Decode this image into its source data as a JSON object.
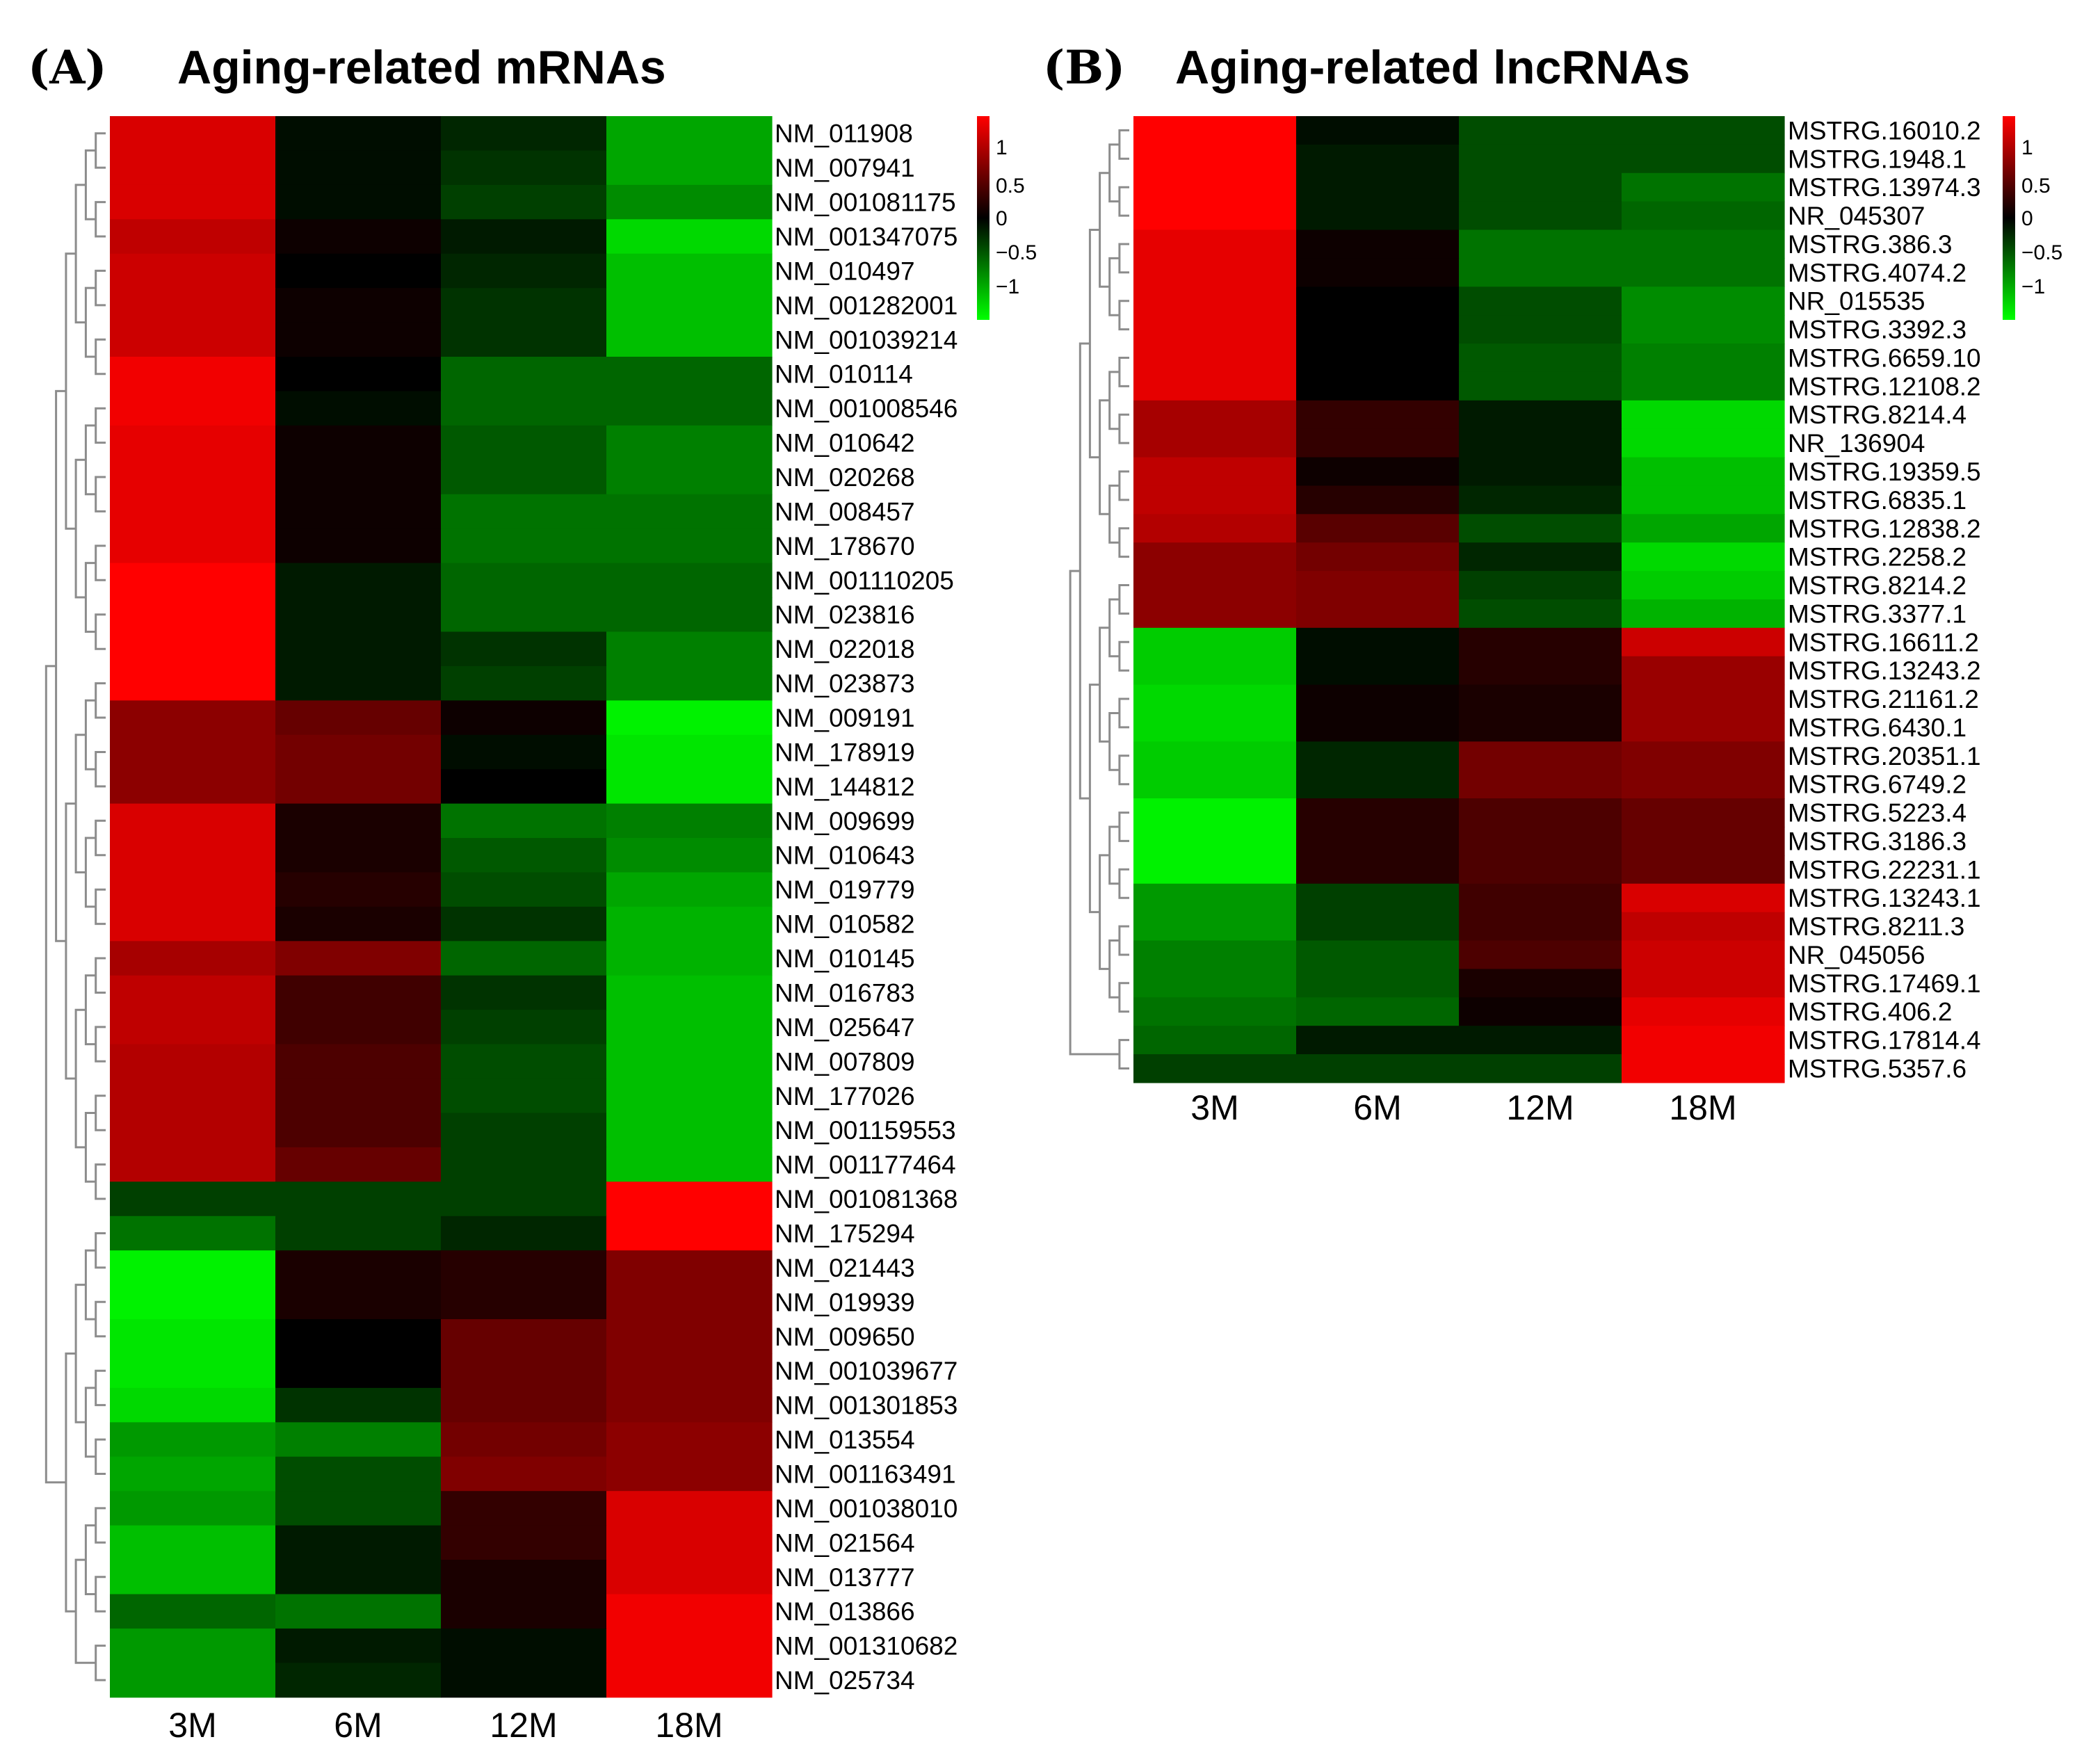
{
  "chart_data": [
    {
      "type": "heatmap",
      "panel": "(A)",
      "title": "Aging-related mRNAs",
      "columns": [
        "3M",
        "6M",
        "12M",
        "18M"
      ],
      "rows": [
        "NM_011908",
        "NM_007941",
        "NM_001081175",
        "NM_001347075",
        "NM_010497",
        "NM_001282001",
        "NM_001039214",
        "NM_010114",
        "NM_001008546",
        "NM_010642",
        "NM_020268",
        "NM_008457",
        "NM_178670",
        "NM_001110205",
        "NM_023816",
        "NM_022018",
        "NM_023873",
        "NM_009191",
        "NM_178919",
        "NM_144812",
        "NM_009699",
        "NM_010643",
        "NM_019779",
        "NM_010582",
        "NM_010145",
        "NM_016783",
        "NM_025647",
        "NM_007809",
        "NM_177026",
        "NM_001159553",
        "NM_001177464",
        "NM_001081368",
        "NM_175294",
        "NM_021443",
        "NM_019939",
        "NM_009650",
        "NM_001039677",
        "NM_001301853",
        "NM_013554",
        "NM_001163491",
        "NM_001038010",
        "NM_021564",
        "NM_013777",
        "NM_013866",
        "NM_001310682",
        "NM_025734"
      ],
      "values": [
        [
          0.85,
          -0.05,
          -0.15,
          -0.65
        ],
        [
          0.85,
          -0.05,
          -0.2,
          -0.65
        ],
        [
          0.85,
          -0.05,
          -0.25,
          -0.55
        ],
        [
          0.75,
          0.05,
          -0.1,
          -0.85
        ],
        [
          0.8,
          0.0,
          -0.15,
          -0.75
        ],
        [
          0.8,
          0.05,
          -0.2,
          -0.75
        ],
        [
          0.8,
          0.05,
          -0.2,
          -0.75
        ],
        [
          0.95,
          0.0,
          -0.4,
          -0.4
        ],
        [
          0.95,
          -0.05,
          -0.4,
          -0.4
        ],
        [
          0.9,
          0.05,
          -0.35,
          -0.5
        ],
        [
          0.9,
          0.05,
          -0.35,
          -0.5
        ],
        [
          0.9,
          0.05,
          -0.45,
          -0.45
        ],
        [
          0.9,
          0.05,
          -0.45,
          -0.45
        ],
        [
          1.0,
          -0.1,
          -0.4,
          -0.4
        ],
        [
          1.0,
          -0.1,
          -0.4,
          -0.4
        ],
        [
          1.0,
          -0.1,
          -0.2,
          -0.5
        ],
        [
          1.0,
          -0.1,
          -0.25,
          -0.5
        ],
        [
          0.55,
          0.4,
          0.05,
          -0.95
        ],
        [
          0.55,
          0.45,
          -0.05,
          -0.9
        ],
        [
          0.55,
          0.45,
          0.0,
          -0.9
        ],
        [
          0.85,
          0.1,
          -0.45,
          -0.5
        ],
        [
          0.85,
          0.1,
          -0.35,
          -0.55
        ],
        [
          0.85,
          0.15,
          -0.3,
          -0.65
        ],
        [
          0.85,
          0.1,
          -0.2,
          -0.7
        ],
        [
          0.65,
          0.5,
          -0.4,
          -0.7
        ],
        [
          0.75,
          0.25,
          -0.2,
          -0.75
        ],
        [
          0.75,
          0.25,
          -0.25,
          -0.75
        ],
        [
          0.7,
          0.3,
          -0.3,
          -0.75
        ],
        [
          0.7,
          0.3,
          -0.3,
          -0.75
        ],
        [
          0.7,
          0.3,
          -0.25,
          -0.75
        ],
        [
          0.7,
          0.4,
          -0.25,
          -0.75
        ],
        [
          -0.25,
          -0.25,
          -0.25,
          1.0
        ],
        [
          -0.45,
          -0.25,
          -0.15,
          1.0
        ],
        [
          -0.95,
          0.1,
          0.15,
          0.5
        ],
        [
          -0.95,
          0.1,
          0.15,
          0.5
        ],
        [
          -0.9,
          0.0,
          0.4,
          0.5
        ],
        [
          -0.9,
          0.0,
          0.4,
          0.5
        ],
        [
          -0.85,
          -0.2,
          0.4,
          0.5
        ],
        [
          -0.6,
          -0.5,
          0.45,
          0.55
        ],
        [
          -0.65,
          -0.3,
          0.5,
          0.55
        ],
        [
          -0.6,
          -0.3,
          0.2,
          0.85
        ],
        [
          -0.75,
          -0.1,
          0.2,
          0.85
        ],
        [
          -0.75,
          -0.1,
          0.1,
          0.85
        ],
        [
          -0.4,
          -0.45,
          0.1,
          0.95
        ],
        [
          -0.6,
          -0.1,
          -0.05,
          0.95
        ],
        [
          -0.6,
          -0.15,
          -0.05,
          0.95
        ]
      ],
      "color_scale": {
        "low": "#00ff00",
        "mid": "#000000",
        "high": "#ff0000",
        "min": -1,
        "max": 1,
        "ticks": [
          "1",
          "0.5",
          "0",
          "−0.5",
          "−1"
        ]
      }
    },
    {
      "type": "heatmap",
      "panel": "(B)",
      "title": "Aging-related lncRNAs",
      "columns": [
        "3M",
        "6M",
        "12M",
        "18M"
      ],
      "rows": [
        "MSTRG.16010.2",
        "MSTRG.1948.1",
        "MSTRG.13974.3",
        "NR_045307",
        "MSTRG.386.3",
        "MSTRG.4074.2",
        "NR_015535",
        "MSTRG.3392.3",
        "MSTRG.6659.10",
        "MSTRG.12108.2",
        "MSTRG.8214.4",
        "NR_136904",
        "MSTRG.19359.5",
        "MSTRG.6835.1",
        "MSTRG.12838.2",
        "MSTRG.2258.2",
        "MSTRG.8214.2",
        "MSTRG.3377.1",
        "MSTRG.16611.2",
        "MSTRG.13243.2",
        "MSTRG.21161.2",
        "MSTRG.6430.1",
        "MSTRG.20351.1",
        "MSTRG.6749.2",
        "MSTRG.5223.4",
        "MSTRG.3186.3",
        "MSTRG.22231.1",
        "MSTRG.13243.1",
        "MSTRG.8211.3",
        "NR_045056",
        "MSTRG.17469.1",
        "MSTRG.406.2",
        "MSTRG.17814.4",
        "MSTRG.5357.6"
      ],
      "values": [
        [
          1.0,
          -0.05,
          -0.3,
          -0.3
        ],
        [
          1.0,
          -0.1,
          -0.3,
          -0.3
        ],
        [
          1.0,
          -0.1,
          -0.3,
          -0.45
        ],
        [
          1.0,
          -0.1,
          -0.3,
          -0.4
        ],
        [
          0.9,
          0.05,
          -0.45,
          -0.45
        ],
        [
          0.9,
          0.05,
          -0.45,
          -0.45
        ],
        [
          0.9,
          0.0,
          -0.3,
          -0.55
        ],
        [
          0.9,
          0.0,
          -0.3,
          -0.55
        ],
        [
          0.9,
          0.0,
          -0.35,
          -0.5
        ],
        [
          0.9,
          0.0,
          -0.35,
          -0.5
        ],
        [
          0.65,
          0.2,
          -0.1,
          -0.85
        ],
        [
          0.65,
          0.2,
          -0.1,
          -0.85
        ],
        [
          0.75,
          0.05,
          -0.1,
          -0.75
        ],
        [
          0.75,
          0.15,
          -0.15,
          -0.75
        ],
        [
          0.7,
          0.35,
          -0.3,
          -0.65
        ],
        [
          0.55,
          0.45,
          -0.15,
          -0.85
        ],
        [
          0.55,
          0.5,
          -0.25,
          -0.8
        ],
        [
          0.55,
          0.5,
          -0.3,
          -0.7
        ],
        [
          -0.8,
          -0.05,
          0.15,
          0.8
        ],
        [
          -0.8,
          -0.05,
          0.15,
          0.6
        ],
        [
          -0.85,
          0.05,
          0.1,
          0.6
        ],
        [
          -0.85,
          0.05,
          0.1,
          0.6
        ],
        [
          -0.8,
          -0.15,
          0.45,
          0.5
        ],
        [
          -0.8,
          -0.15,
          0.45,
          0.5
        ],
        [
          -0.95,
          0.15,
          0.3,
          0.4
        ],
        [
          -0.95,
          0.15,
          0.3,
          0.4
        ],
        [
          -0.95,
          0.15,
          0.3,
          0.4
        ],
        [
          -0.6,
          -0.25,
          0.25,
          0.85
        ],
        [
          -0.6,
          -0.25,
          0.25,
          0.75
        ],
        [
          -0.5,
          -0.35,
          0.3,
          0.8
        ],
        [
          -0.5,
          -0.35,
          0.1,
          0.8
        ],
        [
          -0.45,
          -0.4,
          0.05,
          0.9
        ],
        [
          -0.4,
          -0.1,
          -0.1,
          0.95
        ],
        [
          -0.25,
          -0.25,
          -0.25,
          0.95
        ]
      ],
      "color_scale": {
        "low": "#00ff00",
        "mid": "#000000",
        "high": "#ff0000",
        "min": -1,
        "max": 1,
        "ticks": [
          "1",
          "0.5",
          "0",
          "−0.5",
          "−1"
        ]
      }
    }
  ]
}
